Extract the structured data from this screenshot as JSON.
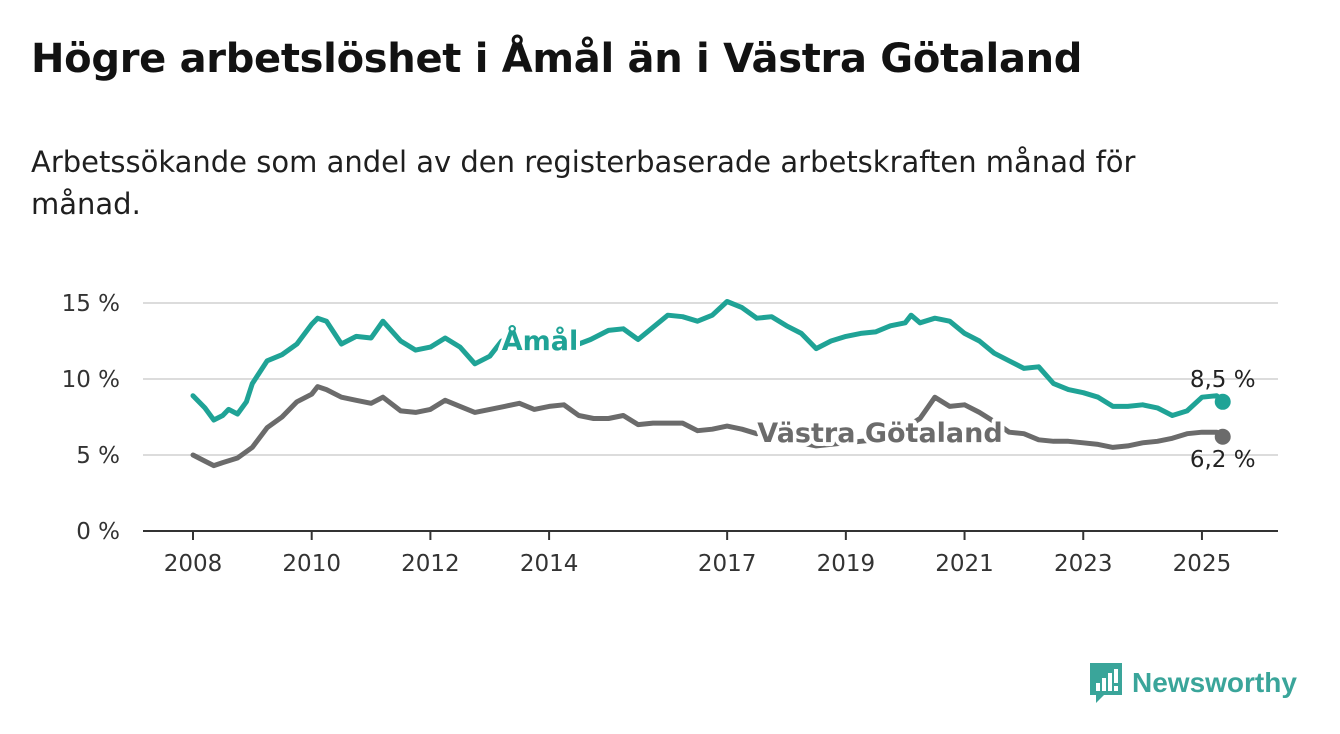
{
  "header": {
    "title": "Högre arbetslöshet i Åmål än i Västra Götaland",
    "subtitle": "Arbetssökande som andel av den registerbaserade arbetskraften månad för månad."
  },
  "brand": {
    "name": "Newsworthy",
    "icon": "newsworthy-logo-icon",
    "color": "#3aa59a"
  },
  "chart_data": {
    "type": "line",
    "title": "Högre arbetslöshet i Åmål än i Västra Götaland",
    "subtitle": "Arbetssökande som andel av den registerbaserade arbetskraften månad för månad.",
    "xlabel": "",
    "ylabel": "",
    "ylim": [
      0,
      15
    ],
    "y_ticks": [
      0,
      5,
      10,
      15
    ],
    "y_tick_labels": [
      "0 %",
      "5 %",
      "10 %",
      "15 %"
    ],
    "x_ticks": [
      2008,
      2010,
      2012,
      2014,
      2017,
      2019,
      2021,
      2023,
      2025
    ],
    "x_tick_labels": [
      "2008",
      "2010",
      "2012",
      "2014",
      "2017",
      "2019",
      "2021",
      "2023",
      "2025"
    ],
    "grid": "horizontal",
    "legend": "none (inline labels)",
    "series": [
      {
        "name": "Åmål",
        "color": "#1fa396",
        "end_label": "8,5 %",
        "points": [
          [
            2008.0,
            8.9
          ],
          [
            2008.2,
            8.1
          ],
          [
            2008.35,
            7.3
          ],
          [
            2008.5,
            7.6
          ],
          [
            2008.6,
            8.0
          ],
          [
            2008.75,
            7.7
          ],
          [
            2008.9,
            8.5
          ],
          [
            2009.0,
            9.7
          ],
          [
            2009.25,
            11.2
          ],
          [
            2009.5,
            11.6
          ],
          [
            2009.75,
            12.3
          ],
          [
            2010.0,
            13.6
          ],
          [
            2010.1,
            14.0
          ],
          [
            2010.25,
            13.8
          ],
          [
            2010.5,
            12.3
          ],
          [
            2010.75,
            12.8
          ],
          [
            2011.0,
            12.7
          ],
          [
            2011.2,
            13.8
          ],
          [
            2011.5,
            12.5
          ],
          [
            2011.75,
            11.9
          ],
          [
            2012.0,
            12.1
          ],
          [
            2012.25,
            12.7
          ],
          [
            2012.5,
            12.1
          ],
          [
            2012.75,
            11.0
          ],
          [
            2013.0,
            11.5
          ],
          [
            2013.2,
            12.5
          ],
          [
            2013.4,
            12.7
          ],
          [
            2013.5,
            12.4
          ],
          [
            2014.0,
            12.2
          ],
          [
            2014.5,
            12.3
          ],
          [
            2014.7,
            12.6
          ],
          [
            2015.0,
            13.2
          ],
          [
            2015.25,
            13.3
          ],
          [
            2015.5,
            12.6
          ],
          [
            2015.75,
            13.4
          ],
          [
            2016.0,
            14.2
          ],
          [
            2016.25,
            14.1
          ],
          [
            2016.5,
            13.8
          ],
          [
            2016.75,
            14.2
          ],
          [
            2017.0,
            15.1
          ],
          [
            2017.25,
            14.7
          ],
          [
            2017.5,
            14.0
          ],
          [
            2017.75,
            14.1
          ],
          [
            2018.0,
            13.5
          ],
          [
            2018.25,
            13.0
          ],
          [
            2018.5,
            12.0
          ],
          [
            2018.75,
            12.5
          ],
          [
            2019.0,
            12.8
          ],
          [
            2019.25,
            13.0
          ],
          [
            2019.5,
            13.1
          ],
          [
            2019.75,
            13.5
          ],
          [
            2020.0,
            13.7
          ],
          [
            2020.1,
            14.2
          ],
          [
            2020.25,
            13.7
          ],
          [
            2020.5,
            14.0
          ],
          [
            2020.75,
            13.8
          ],
          [
            2021.0,
            13.0
          ],
          [
            2021.25,
            12.5
          ],
          [
            2021.5,
            11.7
          ],
          [
            2021.75,
            11.2
          ],
          [
            2022.0,
            10.7
          ],
          [
            2022.25,
            10.8
          ],
          [
            2022.5,
            9.7
          ],
          [
            2022.75,
            9.3
          ],
          [
            2023.0,
            9.1
          ],
          [
            2023.25,
            8.8
          ],
          [
            2023.5,
            8.2
          ],
          [
            2023.75,
            8.2
          ],
          [
            2024.0,
            8.3
          ],
          [
            2024.25,
            8.1
          ],
          [
            2024.5,
            7.6
          ],
          [
            2024.75,
            7.9
          ],
          [
            2025.0,
            8.8
          ],
          [
            2025.25,
            8.9
          ],
          [
            2025.35,
            8.5
          ]
        ]
      },
      {
        "name": "Västra Götaland",
        "color": "#6b6b6b",
        "end_label": "6,2 %",
        "points": [
          [
            2008.0,
            5.0
          ],
          [
            2008.2,
            4.6
          ],
          [
            2008.35,
            4.3
          ],
          [
            2008.5,
            4.5
          ],
          [
            2008.75,
            4.8
          ],
          [
            2009.0,
            5.5
          ],
          [
            2009.25,
            6.8
          ],
          [
            2009.5,
            7.5
          ],
          [
            2009.75,
            8.5
          ],
          [
            2010.0,
            9.0
          ],
          [
            2010.1,
            9.5
          ],
          [
            2010.25,
            9.3
          ],
          [
            2010.5,
            8.8
          ],
          [
            2010.75,
            8.6
          ],
          [
            2011.0,
            8.4
          ],
          [
            2011.2,
            8.8
          ],
          [
            2011.5,
            7.9
          ],
          [
            2011.75,
            7.8
          ],
          [
            2012.0,
            8.0
          ],
          [
            2012.25,
            8.6
          ],
          [
            2012.5,
            8.2
          ],
          [
            2012.75,
            7.8
          ],
          [
            2013.0,
            8.0
          ],
          [
            2013.25,
            8.2
          ],
          [
            2013.5,
            8.4
          ],
          [
            2013.75,
            8.0
          ],
          [
            2014.0,
            8.2
          ],
          [
            2014.25,
            8.3
          ],
          [
            2014.5,
            7.6
          ],
          [
            2014.75,
            7.4
          ],
          [
            2015.0,
            7.4
          ],
          [
            2015.25,
            7.6
          ],
          [
            2015.5,
            7.0
          ],
          [
            2015.75,
            7.1
          ],
          [
            2016.0,
            7.1
          ],
          [
            2016.25,
            7.1
          ],
          [
            2016.5,
            6.6
          ],
          [
            2016.75,
            6.7
          ],
          [
            2017.0,
            6.9
          ],
          [
            2017.25,
            6.7
          ],
          [
            2017.5,
            6.4
          ],
          [
            2017.75,
            6.5
          ],
          [
            2018.0,
            6.0
          ],
          [
            2018.5,
            5.6
          ],
          [
            2019.0,
            5.8
          ],
          [
            2019.5,
            6.0
          ],
          [
            2019.75,
            6.3
          ],
          [
            2020.0,
            6.8
          ],
          [
            2020.25,
            7.4
          ],
          [
            2020.5,
            8.8
          ],
          [
            2020.75,
            8.2
          ],
          [
            2021.0,
            8.3
          ],
          [
            2021.25,
            7.8
          ],
          [
            2021.5,
            7.2
          ],
          [
            2021.75,
            6.5
          ],
          [
            2022.0,
            6.4
          ],
          [
            2022.25,
            6.0
          ],
          [
            2022.5,
            5.9
          ],
          [
            2022.75,
            5.9
          ],
          [
            2023.0,
            5.8
          ],
          [
            2023.25,
            5.7
          ],
          [
            2023.5,
            5.5
          ],
          [
            2023.75,
            5.6
          ],
          [
            2024.0,
            5.8
          ],
          [
            2024.25,
            5.9
          ],
          [
            2024.5,
            6.1
          ],
          [
            2024.75,
            6.4
          ],
          [
            2025.0,
            6.5
          ],
          [
            2025.25,
            6.5
          ],
          [
            2025.35,
            6.2
          ]
        ]
      }
    ]
  }
}
